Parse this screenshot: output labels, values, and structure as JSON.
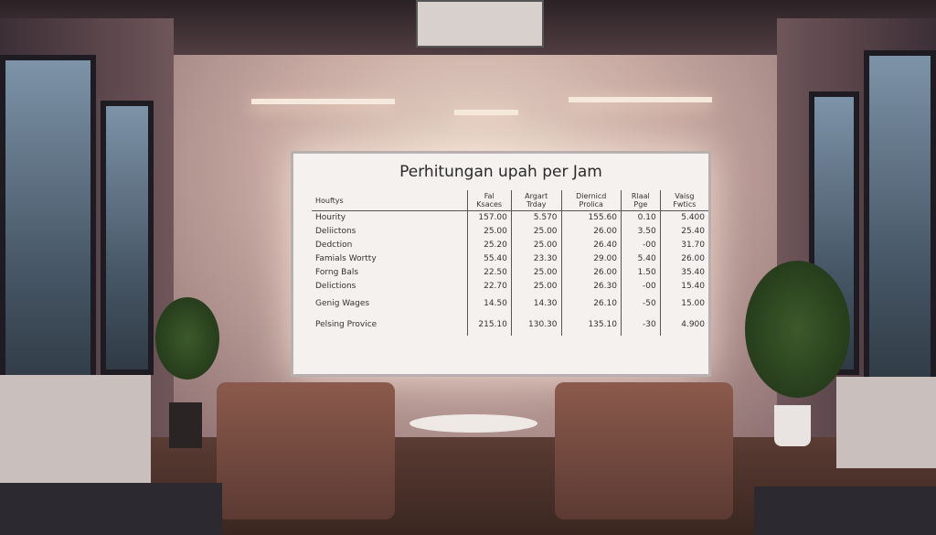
{
  "whiteboard": {
    "title": "Perhitungan upah per Jam",
    "columns": [
      "Houftys",
      "Fal Ksaces",
      "Argart Trday",
      "Diernicd Prolica",
      "Rlaal Pge",
      "Vaisg Fwtics"
    ],
    "rows": [
      [
        "Hourity",
        "157.00",
        "5.570",
        "155.60",
        "0.10",
        "5.400"
      ],
      [
        "Deliictons",
        "25.00",
        "25.00",
        "26.00",
        "3.50",
        "25.40"
      ],
      [
        "Dedction",
        "25.20",
        "25.00",
        "26.40",
        "-00",
        "31.70"
      ],
      [
        "Famials Wortty",
        "55.40",
        "23.30",
        "29.00",
        "5.40",
        "26.00"
      ],
      [
        "Forng Bals",
        "22.50",
        "25.00",
        "26.00",
        "1.50",
        "35.40"
      ],
      [
        "Delictions",
        "22.70",
        "25.00",
        "26.30",
        "-00",
        "15.40"
      ],
      [
        "Genig Wages",
        "14.50",
        "14.30",
        "26.10",
        "-50",
        "15.00"
      ],
      [
        "Pelsing Provice",
        "215.10",
        "130.30",
        "135.10",
        "-30",
        "4.900"
      ]
    ]
  }
}
